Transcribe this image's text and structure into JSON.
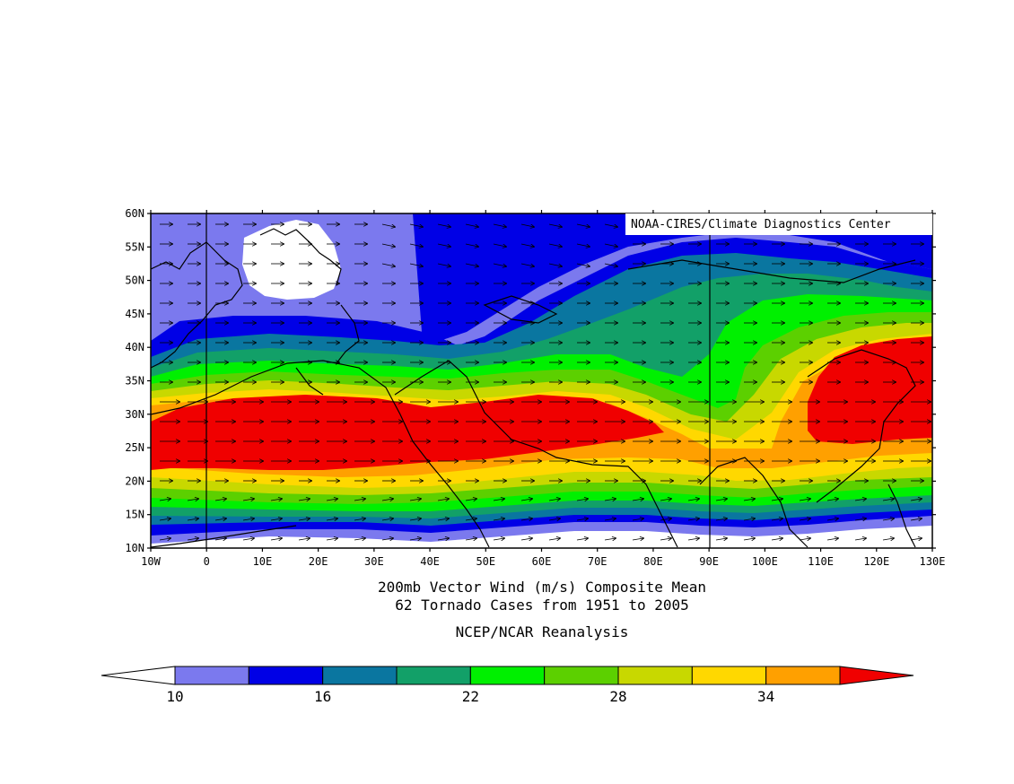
{
  "credit": "NOAA-CIRES/Climate Diagnostics Center",
  "title_line1": "200mb Vector Wind (m/s) Composite Mean",
  "title_line2": "62 Tornado Cases from 1951 to 2005",
  "source": "NCEP/NCAR Reanalysis",
  "lat_labels": [
    "60N",
    "55N",
    "50N",
    "45N",
    "40N",
    "35N",
    "30N",
    "25N",
    "20N",
    "15N",
    "10N"
  ],
  "lon_labels": [
    "10W",
    "0",
    "10E",
    "20E",
    "30E",
    "40E",
    "50E",
    "60E",
    "70E",
    "80E",
    "90E",
    "100E",
    "110E",
    "120E",
    "130E"
  ],
  "colorbar": {
    "colors": [
      "#ffffff",
      "#7b79ee",
      "#0000e6",
      "#0a76a0",
      "#12a068",
      "#00f000",
      "#5cd000",
      "#c8d800",
      "#ffd800",
      "#ffa000",
      "#f00000"
    ],
    "labels": [
      "10",
      "16",
      "22",
      "28",
      "34"
    ]
  },
  "chart_data": {
    "type": "heatmap",
    "variable": "200mb vector wind speed (m/s)",
    "lon_range": [
      -10,
      130
    ],
    "lat_range": [
      10,
      60
    ],
    "contour_levels": [
      10,
      13,
      16,
      19,
      22,
      25,
      28,
      31,
      34,
      37
    ],
    "jet_core": {
      "max_speed_ms": "above 37"
    }
  }
}
